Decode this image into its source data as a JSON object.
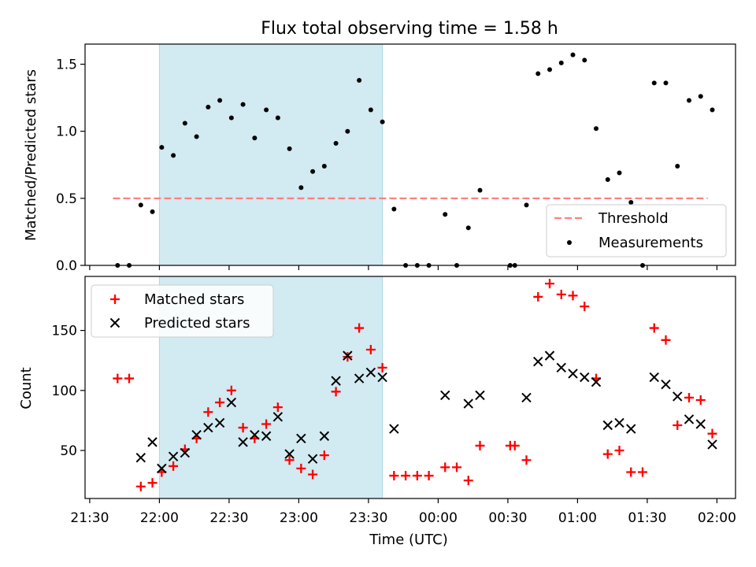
{
  "chart_data": [
    {
      "type": "scatter",
      "title": "Flux total observing time = 1.58 h",
      "ylabel": "Matched/Predicted stars",
      "xlim": [
        "21:28",
        "02:08"
      ],
      "ylim": [
        0,
        1.65
      ],
      "yticks": [
        0.0,
        0.5,
        1.0,
        1.5
      ],
      "ytick_labels": [
        "0.0",
        "0.5",
        "1.0",
        "1.5"
      ],
      "shaded_interval": [
        "22:00",
        "23:36"
      ],
      "shaded_color": "#add8e6",
      "legend_position": "lower right",
      "threshold": {
        "name": "Threshold",
        "value": 0.5,
        "x_range": [
          "21:40",
          "01:56"
        ],
        "color": "#ff8080"
      },
      "series": [
        {
          "name": "Measurements",
          "color": "#000000",
          "points": [
            [
              "21:42",
              0.0
            ],
            [
              "21:47",
              0.0
            ],
            [
              "21:52",
              0.45
            ],
            [
              "21:57",
              0.4
            ],
            [
              "22:01",
              0.88
            ],
            [
              "22:06",
              0.82
            ],
            [
              "22:11",
              1.06
            ],
            [
              "22:16",
              0.96
            ],
            [
              "22:21",
              1.18
            ],
            [
              "22:26",
              1.23
            ],
            [
              "22:31",
              1.1
            ],
            [
              "22:36",
              1.2
            ],
            [
              "22:41",
              0.95
            ],
            [
              "22:46",
              1.16
            ],
            [
              "22:51",
              1.1
            ],
            [
              "22:56",
              0.87
            ],
            [
              "23:01",
              0.58
            ],
            [
              "23:06",
              0.7
            ],
            [
              "23:11",
              0.74
            ],
            [
              "23:16",
              0.91
            ],
            [
              "23:21",
              1.0
            ],
            [
              "23:26",
              1.38
            ],
            [
              "23:31",
              1.16
            ],
            [
              "23:36",
              1.07
            ],
            [
              "23:41",
              0.42
            ],
            [
              "23:46",
              0.0
            ],
            [
              "23:51",
              0.0
            ],
            [
              "23:56",
              0.0
            ],
            [
              "00:03",
              0.38
            ],
            [
              "00:08",
              0.0
            ],
            [
              "00:13",
              0.28
            ],
            [
              "00:18",
              0.56
            ],
            [
              "00:31",
              0.0
            ],
            [
              "00:33",
              0.0
            ],
            [
              "00:38",
              0.45
            ],
            [
              "00:43",
              1.43
            ],
            [
              "00:48",
              1.46
            ],
            [
              "00:53",
              1.51
            ],
            [
              "00:58",
              1.57
            ],
            [
              "01:03",
              1.53
            ],
            [
              "01:08",
              1.02
            ],
            [
              "01:13",
              0.64
            ],
            [
              "01:18",
              0.69
            ],
            [
              "01:23",
              0.47
            ],
            [
              "01:28",
              0.0
            ],
            [
              "01:33",
              1.36
            ],
            [
              "01:38",
              1.36
            ],
            [
              "01:43",
              0.74
            ],
            [
              "01:48",
              1.23
            ],
            [
              "01:53",
              1.26
            ],
            [
              "01:58",
              1.16
            ]
          ]
        }
      ]
    },
    {
      "type": "scatter",
      "xlabel": "Time (UTC)",
      "ylabel": "Count",
      "xlim": [
        "21:28",
        "02:08"
      ],
      "ylim": [
        10,
        195
      ],
      "xticks": [
        "21:30",
        "22:00",
        "22:30",
        "23:00",
        "23:30",
        "00:00",
        "00:30",
        "01:00",
        "01:30",
        "02:00"
      ],
      "yticks": [
        50,
        100,
        150
      ],
      "shaded_interval": [
        "22:00",
        "23:36"
      ],
      "shaded_color": "#add8e6",
      "legend_position": "upper left",
      "series": [
        {
          "name": "Matched stars",
          "color": "#ff0000",
          "marker": "+",
          "points": [
            [
              "21:42",
              110
            ],
            [
              "21:47",
              110
            ],
            [
              "21:52",
              20
            ],
            [
              "21:57",
              23
            ],
            [
              "22:01",
              32
            ],
            [
              "22:06",
              37
            ],
            [
              "22:11",
              51
            ],
            [
              "22:16",
              60
            ],
            [
              "22:21",
              82
            ],
            [
              "22:26",
              90
            ],
            [
              "22:31",
              100
            ],
            [
              "22:36",
              69
            ],
            [
              "22:41",
              60
            ],
            [
              "22:46",
              72
            ],
            [
              "22:51",
              86
            ],
            [
              "22:56",
              42
            ],
            [
              "23:01",
              35
            ],
            [
              "23:06",
              30
            ],
            [
              "23:11",
              46
            ],
            [
              "23:16",
              99
            ],
            [
              "23:21",
              128
            ],
            [
              "23:26",
              152
            ],
            [
              "23:31",
              134
            ],
            [
              "23:36",
              119
            ],
            [
              "23:41",
              29
            ],
            [
              "23:46",
              29
            ],
            [
              "23:51",
              29
            ],
            [
              "23:56",
              29
            ],
            [
              "00:03",
              36
            ],
            [
              "00:08",
              36
            ],
            [
              "00:13",
              25
            ],
            [
              "00:18",
              54
            ],
            [
              "00:31",
              54
            ],
            [
              "00:33",
              54
            ],
            [
              "00:38",
              42
            ],
            [
              "00:43",
              178
            ],
            [
              "00:48",
              189
            ],
            [
              "00:53",
              180
            ],
            [
              "00:58",
              179
            ],
            [
              "01:03",
              170
            ],
            [
              "01:08",
              110
            ],
            [
              "01:13",
              47
            ],
            [
              "01:18",
              50
            ],
            [
              "01:23",
              32
            ],
            [
              "01:28",
              32
            ],
            [
              "01:33",
              152
            ],
            [
              "01:38",
              142
            ],
            [
              "01:43",
              71
            ],
            [
              "01:48",
              94
            ],
            [
              "01:53",
              92
            ],
            [
              "01:58",
              64
            ]
          ]
        },
        {
          "name": "Predicted stars",
          "color": "#000000",
          "marker": "x",
          "points": [
            [
              "21:52",
              44
            ],
            [
              "21:57",
              57
            ],
            [
              "22:01",
              35
            ],
            [
              "22:06",
              45
            ],
            [
              "22:11",
              48
            ],
            [
              "22:16",
              63
            ],
            [
              "22:21",
              69
            ],
            [
              "22:26",
              73
            ],
            [
              "22:31",
              90
            ],
            [
              "22:36",
              57
            ],
            [
              "22:41",
              63
            ],
            [
              "22:46",
              62
            ],
            [
              "22:51",
              78
            ],
            [
              "22:56",
              47
            ],
            [
              "23:01",
              60
            ],
            [
              "23:06",
              43
            ],
            [
              "23:11",
              62
            ],
            [
              "23:16",
              108
            ],
            [
              "23:21",
              129
            ],
            [
              "23:26",
              110
            ],
            [
              "23:31",
              115
            ],
            [
              "23:36",
              111
            ],
            [
              "23:41",
              68
            ],
            [
              "00:03",
              96
            ],
            [
              "00:13",
              89
            ],
            [
              "00:18",
              96
            ],
            [
              "00:38",
              94
            ],
            [
              "00:43",
              124
            ],
            [
              "00:48",
              129
            ],
            [
              "00:53",
              119
            ],
            [
              "00:58",
              114
            ],
            [
              "01:03",
              111
            ],
            [
              "01:08",
              107
            ],
            [
              "01:13",
              71
            ],
            [
              "01:18",
              73
            ],
            [
              "01:23",
              68
            ],
            [
              "01:33",
              111
            ],
            [
              "01:38",
              105
            ],
            [
              "01:43",
              95
            ],
            [
              "01:48",
              76
            ],
            [
              "01:53",
              72
            ],
            [
              "01:58",
              55
            ]
          ]
        }
      ]
    }
  ]
}
